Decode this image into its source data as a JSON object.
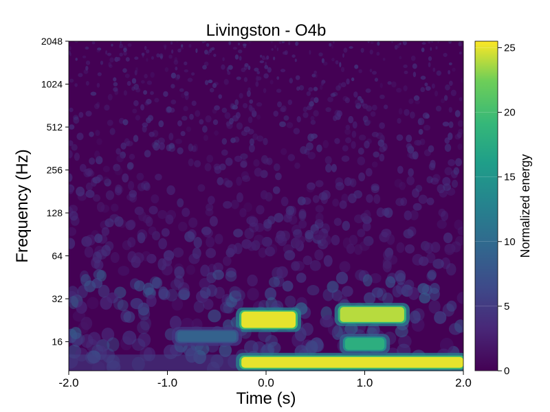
{
  "chart_data": {
    "type": "heatmap",
    "title": "Livingston - O4b",
    "xlabel": "Time (s)",
    "ylabel": "Frequency (Hz)",
    "x_range": [
      -2.0,
      2.0
    ],
    "x_ticks": [
      "-2.0",
      "-1.0",
      "0.0",
      "1.0",
      "2.0"
    ],
    "y_scale": "log2",
    "y_range": [
      10,
      2048
    ],
    "y_ticks": [
      "16",
      "32",
      "64",
      "128",
      "256",
      "512",
      "1024",
      "2048"
    ],
    "colormap": "viridis",
    "colorbar": {
      "label": "Normalized energy",
      "range": [
        0,
        25.5
      ],
      "ticks": [
        "0",
        "5",
        "10",
        "15",
        "20",
        "25"
      ]
    },
    "features": [
      {
        "t_start": -0.25,
        "t_end": 0.3,
        "f_low": 20,
        "f_high": 26,
        "energy": 25
      },
      {
        "t_start": 0.75,
        "t_end": 1.4,
        "f_low": 22,
        "f_high": 28,
        "energy": 24
      },
      {
        "t_start": -0.25,
        "t_end": 2.0,
        "f_low": 10.5,
        "f_high": 12.5,
        "energy": 25
      },
      {
        "t_start": -0.9,
        "t_end": -0.3,
        "f_low": 16,
        "f_high": 19,
        "energy": 9
      },
      {
        "t_start": 0.8,
        "t_end": 1.2,
        "f_low": 14,
        "f_high": 17,
        "energy": 18
      }
    ]
  }
}
